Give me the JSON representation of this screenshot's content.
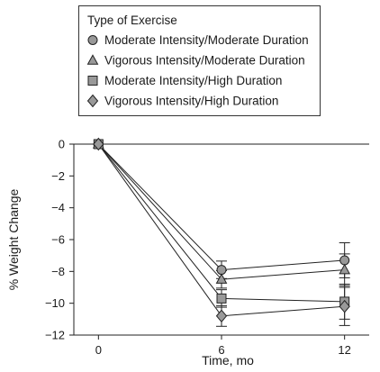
{
  "chart_data": {
    "type": "line",
    "title": "",
    "xlabel": "Time, mo",
    "ylabel": "% Weight Change",
    "legend_title": "Type of Exercise",
    "legend_position": "top",
    "x": [
      0,
      6,
      12
    ],
    "x_ticks": [
      "0",
      "6",
      "12"
    ],
    "y_ticks": [
      "0",
      "−2",
      "−4",
      "−6",
      "−8",
      "−10",
      "−12"
    ],
    "xlim": [
      -1.2,
      13.2
    ],
    "ylim": [
      -12,
      0
    ],
    "grid": false,
    "series": [
      {
        "name": "Moderate Intensity/Moderate Duration",
        "marker": "circle",
        "values": [
          0,
          -7.9,
          -7.3
        ],
        "error": [
          0,
          0.55,
          1.1
        ],
        "fill": "#999999"
      },
      {
        "name": "Vigorous Intensity/Moderate Duration",
        "marker": "triangle",
        "values": [
          0,
          -8.5,
          -7.9
        ],
        "error": [
          0,
          0.55,
          1.0
        ],
        "fill": "#999999"
      },
      {
        "name": "Moderate Intensity/High Duration",
        "marker": "square",
        "values": [
          0,
          -9.7,
          -9.9
        ],
        "error": [
          0,
          0.55,
          1.1
        ],
        "fill": "#999999"
      },
      {
        "name": "Vigorous Intensity/High Duration",
        "marker": "diamond",
        "values": [
          0,
          -10.8,
          -10.2
        ],
        "error": [
          0,
          0.65,
          1.2
        ],
        "fill": "#999999"
      }
    ]
  }
}
